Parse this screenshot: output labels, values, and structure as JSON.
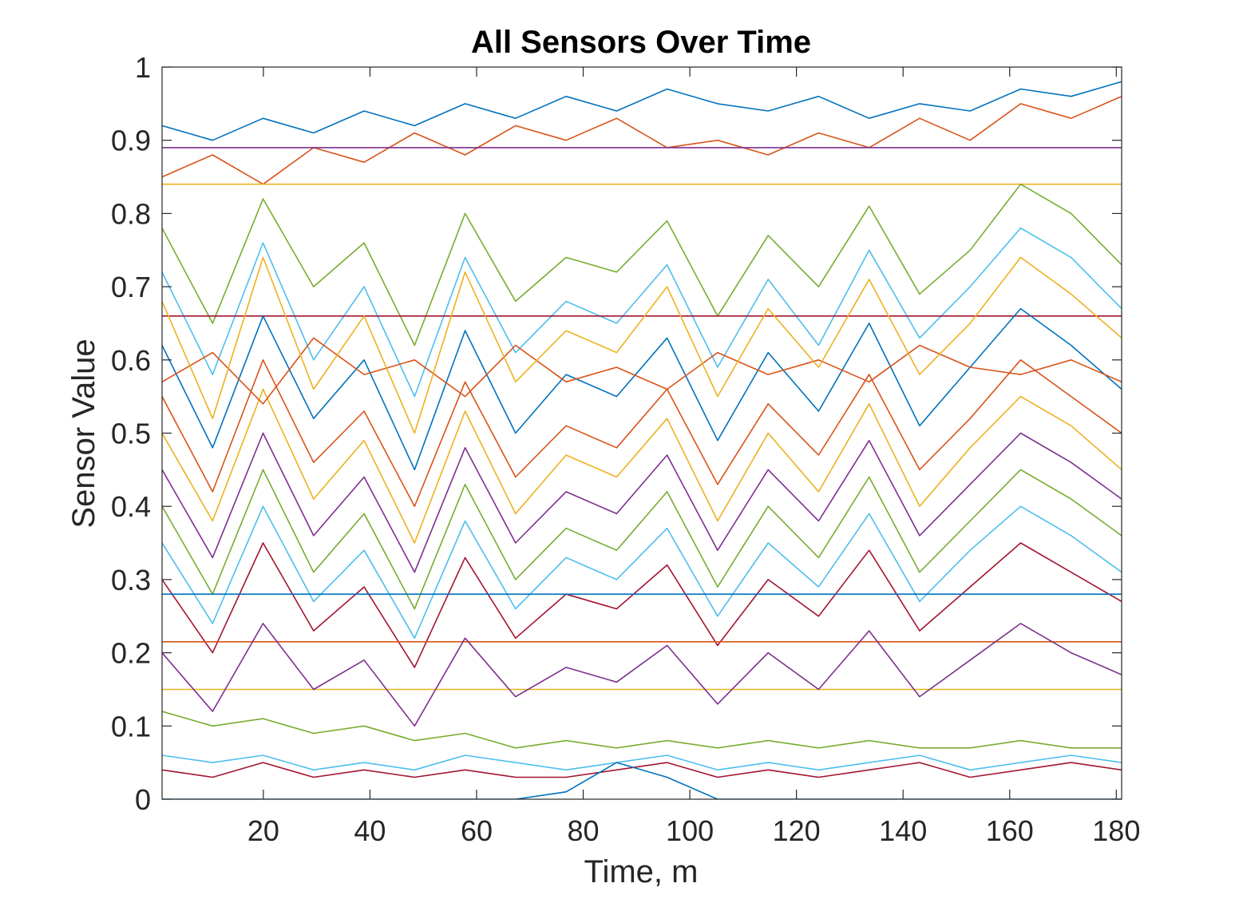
{
  "chart_data": {
    "type": "line",
    "title": "All Sensors Over Time",
    "xlabel": "Time, m",
    "ylabel": "Sensor Value",
    "xlim": [
      1,
      181
    ],
    "ylim": [
      0,
      1
    ],
    "xticks": [
      20,
      40,
      60,
      80,
      100,
      120,
      140,
      160,
      180
    ],
    "yticks": [
      0,
      0.1,
      0.2,
      0.3,
      0.4,
      0.5,
      0.6,
      0.7,
      0.8,
      0.9,
      1
    ],
    "grid": false,
    "legend": "none",
    "colors": [
      "#0072BD",
      "#D95319",
      "#EDB120",
      "#7E2F8E",
      "#77AC30",
      "#4DBEEE",
      "#A2142F"
    ],
    "series": [
      {
        "values": [
          0.92,
          0.9,
          0.93,
          0.91,
          0.94,
          0.92,
          0.95,
          0.93,
          0.96,
          0.94,
          0.97,
          0.95,
          0.94,
          0.96,
          0.93,
          0.95,
          0.94,
          0.97,
          0.96,
          0.98
        ]
      },
      {
        "values": [
          0.85,
          0.88,
          0.84,
          0.89,
          0.87,
          0.91,
          0.88,
          0.92,
          0.9,
          0.93,
          0.89,
          0.9,
          0.88,
          0.91,
          0.89,
          0.93,
          0.9,
          0.95,
          0.93,
          0.96
        ]
      },
      {
        "values": [
          0.84,
          0.84,
          0.84,
          0.84,
          0.84,
          0.84,
          0.84,
          0.84,
          0.84,
          0.84,
          0.84,
          0.84,
          0.84,
          0.84,
          0.84,
          0.84,
          0.84,
          0.84,
          0.84,
          0.84
        ]
      },
      {
        "values": [
          0.89,
          0.89,
          0.89,
          0.89,
          0.89,
          0.89,
          0.89,
          0.89,
          0.89,
          0.89,
          0.89,
          0.89,
          0.89,
          0.89,
          0.89,
          0.89,
          0.89,
          0.89,
          0.89,
          0.89
        ]
      },
      {
        "values": [
          0.78,
          0.65,
          0.82,
          0.7,
          0.76,
          0.62,
          0.8,
          0.68,
          0.74,
          0.72,
          0.79,
          0.66,
          0.77,
          0.7,
          0.81,
          0.69,
          0.75,
          0.84,
          0.8,
          0.73
        ]
      },
      {
        "values": [
          0.72,
          0.58,
          0.76,
          0.6,
          0.7,
          0.55,
          0.74,
          0.61,
          0.68,
          0.65,
          0.73,
          0.59,
          0.71,
          0.62,
          0.75,
          0.63,
          0.7,
          0.78,
          0.74,
          0.67
        ]
      },
      {
        "values": [
          0.66,
          0.66,
          0.66,
          0.66,
          0.66,
          0.66,
          0.66,
          0.66,
          0.66,
          0.66,
          0.66,
          0.66,
          0.66,
          0.66,
          0.66,
          0.66,
          0.66,
          0.66,
          0.66,
          0.66
        ]
      },
      {
        "values": [
          0.62,
          0.48,
          0.66,
          0.52,
          0.6,
          0.45,
          0.64,
          0.5,
          0.58,
          0.55,
          0.63,
          0.49,
          0.61,
          0.53,
          0.65,
          0.51,
          0.59,
          0.67,
          0.62,
          0.56
        ]
      },
      {
        "values": [
          0.55,
          0.42,
          0.6,
          0.46,
          0.53,
          0.4,
          0.57,
          0.44,
          0.51,
          0.48,
          0.56,
          0.43,
          0.54,
          0.47,
          0.58,
          0.45,
          0.52,
          0.6,
          0.55,
          0.5
        ]
      },
      {
        "values": [
          0.5,
          0.38,
          0.56,
          0.41,
          0.49,
          0.35,
          0.53,
          0.39,
          0.47,
          0.44,
          0.52,
          0.38,
          0.5,
          0.42,
          0.54,
          0.4,
          0.48,
          0.55,
          0.51,
          0.45
        ]
      },
      {
        "values": [
          0.45,
          0.33,
          0.5,
          0.36,
          0.44,
          0.31,
          0.48,
          0.35,
          0.42,
          0.39,
          0.47,
          0.34,
          0.45,
          0.38,
          0.49,
          0.36,
          0.43,
          0.5,
          0.46,
          0.41
        ]
      },
      {
        "values": [
          0.4,
          0.28,
          0.45,
          0.31,
          0.39,
          0.26,
          0.43,
          0.3,
          0.37,
          0.34,
          0.42,
          0.29,
          0.4,
          0.33,
          0.44,
          0.31,
          0.38,
          0.45,
          0.41,
          0.36
        ]
      },
      {
        "values": [
          0.35,
          0.24,
          0.4,
          0.27,
          0.34,
          0.22,
          0.38,
          0.26,
          0.33,
          0.3,
          0.37,
          0.25,
          0.35,
          0.29,
          0.39,
          0.27,
          0.34,
          0.4,
          0.36,
          0.31
        ]
      },
      {
        "values": [
          0.3,
          0.2,
          0.35,
          0.23,
          0.29,
          0.18,
          0.33,
          0.22,
          0.28,
          0.26,
          0.32,
          0.21,
          0.3,
          0.25,
          0.34,
          0.23,
          0.29,
          0.35,
          0.31,
          0.27
        ]
      },
      {
        "values": [
          0.28,
          0.28,
          0.28,
          0.28,
          0.28,
          0.28,
          0.28,
          0.28,
          0.28,
          0.28,
          0.28,
          0.28,
          0.28,
          0.28,
          0.28,
          0.28,
          0.28,
          0.28,
          0.28,
          0.28
        ]
      },
      {
        "values": [
          0.215,
          0.215,
          0.215,
          0.215,
          0.215,
          0.215,
          0.215,
          0.215,
          0.215,
          0.215,
          0.215,
          0.215,
          0.215,
          0.215,
          0.215,
          0.215,
          0.215,
          0.215,
          0.215,
          0.215
        ]
      },
      {
        "values": [
          0.15,
          0.15,
          0.15,
          0.15,
          0.15,
          0.15,
          0.15,
          0.15,
          0.15,
          0.15,
          0.15,
          0.15,
          0.15,
          0.15,
          0.15,
          0.15,
          0.15,
          0.15,
          0.15,
          0.15
        ]
      },
      {
        "values": [
          0.2,
          0.12,
          0.24,
          0.15,
          0.19,
          0.1,
          0.22,
          0.14,
          0.18,
          0.16,
          0.21,
          0.13,
          0.2,
          0.15,
          0.23,
          0.14,
          0.19,
          0.24,
          0.2,
          0.17
        ]
      },
      {
        "values": [
          0.12,
          0.1,
          0.11,
          0.09,
          0.1,
          0.08,
          0.09,
          0.07,
          0.08,
          0.07,
          0.08,
          0.07,
          0.08,
          0.07,
          0.08,
          0.07,
          0.07,
          0.08,
          0.07,
          0.07
        ]
      },
      {
        "values": [
          0.06,
          0.05,
          0.06,
          0.04,
          0.05,
          0.04,
          0.06,
          0.05,
          0.04,
          0.05,
          0.06,
          0.04,
          0.05,
          0.04,
          0.05,
          0.06,
          0.04,
          0.05,
          0.06,
          0.05
        ]
      },
      {
        "values": [
          0.04,
          0.03,
          0.05,
          0.03,
          0.04,
          0.03,
          0.04,
          0.03,
          0.03,
          0.04,
          0.05,
          0.03,
          0.04,
          0.03,
          0.04,
          0.05,
          0.03,
          0.04,
          0.05,
          0.04
        ]
      },
      {
        "values": [
          0,
          0,
          0,
          0,
          0,
          0,
          0,
          0,
          0.01,
          0.05,
          0.03,
          0,
          0,
          0,
          0,
          0,
          0,
          0,
          0,
          0
        ]
      },
      {
        "values": [
          0.57,
          0.61,
          0.54,
          0.63,
          0.58,
          0.6,
          0.55,
          0.62,
          0.57,
          0.59,
          0.56,
          0.61,
          0.58,
          0.6,
          0.57,
          0.62,
          0.59,
          0.58,
          0.6,
          0.57
        ]
      },
      {
        "values": [
          0.68,
          0.52,
          0.74,
          0.56,
          0.66,
          0.5,
          0.72,
          0.57,
          0.64,
          0.61,
          0.7,
          0.55,
          0.67,
          0.59,
          0.71,
          0.58,
          0.65,
          0.74,
          0.69,
          0.63
        ]
      }
    ]
  }
}
